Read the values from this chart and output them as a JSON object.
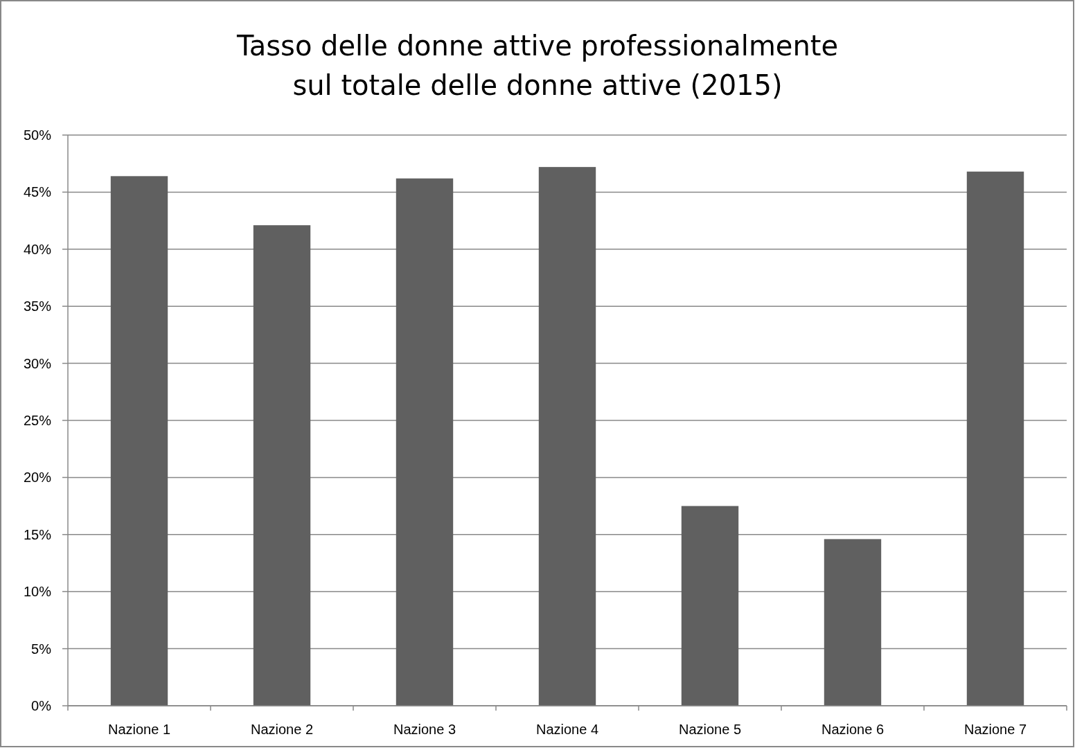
{
  "chart_data": {
    "type": "bar",
    "title": "Tasso delle donne attive professionalmente\nsul totale delle donne attive (2015)",
    "categories": [
      "Nazione 1",
      "Nazione 2",
      "Nazione 3",
      "Nazione 4",
      "Nazione 5",
      "Nazione 6",
      "Nazione 7"
    ],
    "values": [
      46.4,
      42.1,
      46.2,
      47.2,
      17.5,
      14.6,
      46.8
    ],
    "color": "#606060",
    "ylim": [
      0,
      50
    ],
    "yticks": [
      {
        "value": 0,
        "label": "0%"
      },
      {
        "value": 5,
        "label": "5%"
      },
      {
        "value": 10,
        "label": "10%"
      },
      {
        "value": 15,
        "label": "15%"
      },
      {
        "value": 20,
        "label": "20%"
      },
      {
        "value": 25,
        "label": "25%"
      },
      {
        "value": 30,
        "label": "30%"
      },
      {
        "value": 35,
        "label": "35%"
      },
      {
        "value": 40,
        "label": "40%"
      },
      {
        "value": 45,
        "label": "45%"
      },
      {
        "value": 50,
        "label": "50%"
      }
    ],
    "grid": "y"
  }
}
